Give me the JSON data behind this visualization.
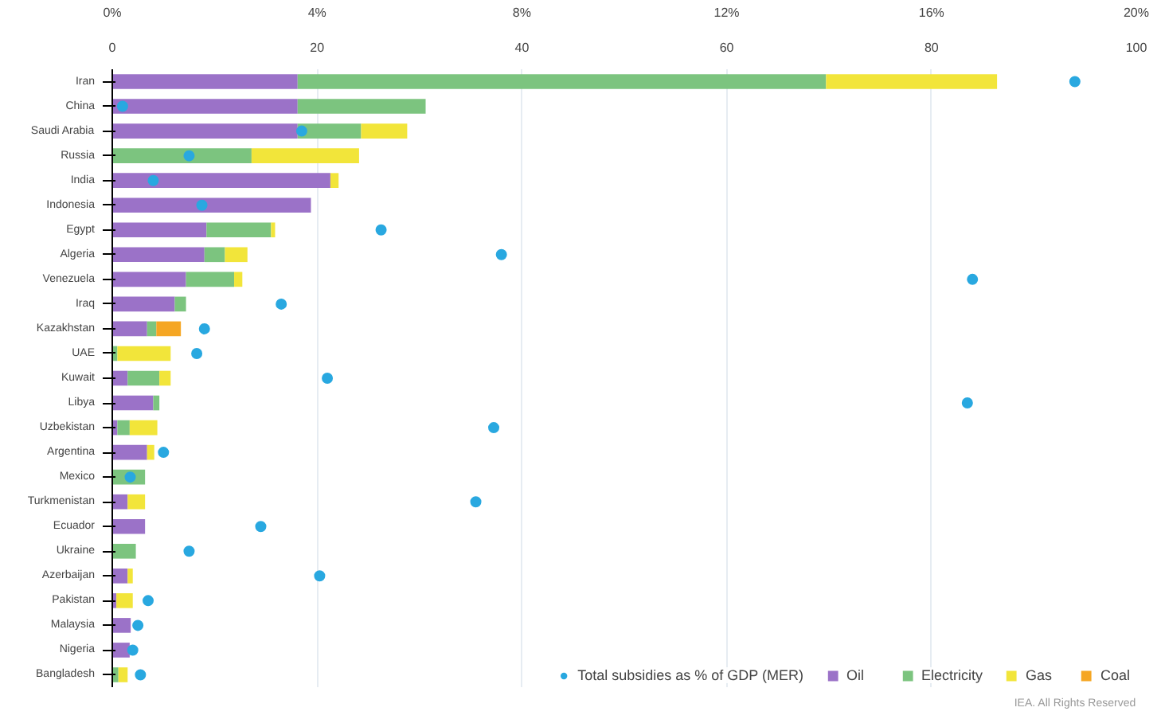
{
  "chart_data": {
    "type": "bar",
    "orientation": "horizontal",
    "stacked": true,
    "categories": [
      "Iran",
      "China",
      "Saudi Arabia",
      "Russia",
      "India",
      "Indonesia",
      "Egypt",
      "Algeria",
      "Venezuela",
      "Iraq",
      "Kazakhstan",
      "UAE",
      "Kuwait",
      "Libya",
      "Uzbekistan",
      "Argentina",
      "Mexico",
      "Turkmenistan",
      "Ecuador",
      "Ukraine",
      "Azerbaijan",
      "Pakistan",
      "Malaysia",
      "Nigeria",
      "Bangladesh"
    ],
    "series": [
      {
        "name": "Oil",
        "color": "#9b72c8",
        "values": [
          18.1,
          18.1,
          18.1,
          0,
          21.3,
          19.4,
          9.2,
          9.0,
          7.2,
          6.1,
          3.4,
          0,
          1.5,
          4.0,
          0.5,
          3.4,
          0,
          1.5,
          3.2,
          0,
          1.5,
          0.4,
          1.8,
          1.7,
          0
        ]
      },
      {
        "name": "Electricity",
        "color": "#7cc47f",
        "values": [
          51.6,
          12.5,
          6.2,
          13.6,
          0,
          0,
          6.3,
          2.0,
          4.7,
          1.1,
          0.9,
          0.5,
          3.1,
          0.6,
          1.2,
          0,
          3.2,
          0,
          0,
          2.3,
          0,
          0,
          0,
          0,
          0.6
        ]
      },
      {
        "name": "Gas",
        "color": "#f2e53a",
        "values": [
          16.7,
          0,
          4.5,
          10.5,
          0.8,
          0,
          0.4,
          2.2,
          0.8,
          0,
          0,
          5.2,
          1.1,
          0,
          2.7,
          0.7,
          0,
          1.7,
          0,
          0,
          0.5,
          1.6,
          0,
          0,
          0.9
        ]
      },
      {
        "name": "Coal",
        "color": "#f5a623",
        "values": [
          0,
          0,
          0,
          0,
          0,
          0,
          0,
          0,
          0,
          0,
          2.4,
          0,
          0,
          0,
          0,
          0,
          0,
          0,
          0,
          0,
          0,
          0,
          0,
          0,
          0
        ]
      },
      {
        "name": "Total subsidies as % of GDP (MER)",
        "type": "scatter",
        "axis": "x2",
        "color": "#29a8e0",
        "values": [
          18.8,
          0.2,
          3.7,
          1.5,
          0.8,
          1.75,
          5.25,
          7.6,
          16.8,
          3.3,
          1.8,
          1.65,
          4.2,
          16.7,
          7.45,
          1.0,
          0.35,
          7.1,
          2.9,
          1.5,
          4.05,
          0.7,
          0.5,
          0.4,
          0.55
        ]
      }
    ],
    "xlim": [
      0,
      100
    ],
    "xticks": [
      0,
      20,
      40,
      60,
      80,
      100
    ],
    "x2lim": [
      0,
      20
    ],
    "x2ticks": [
      {
        "value": 0,
        "label": "0%"
      },
      {
        "value": 4,
        "label": "4%"
      },
      {
        "value": 8,
        "label": "8%"
      },
      {
        "value": 12,
        "label": "12%"
      },
      {
        "value": 16,
        "label": "16%"
      },
      {
        "value": 20,
        "label": "20%"
      }
    ],
    "grid": "x",
    "legend": "bottom right",
    "marker": "circle",
    "annotations": [
      "IEA. All Rights Reserved"
    ]
  }
}
